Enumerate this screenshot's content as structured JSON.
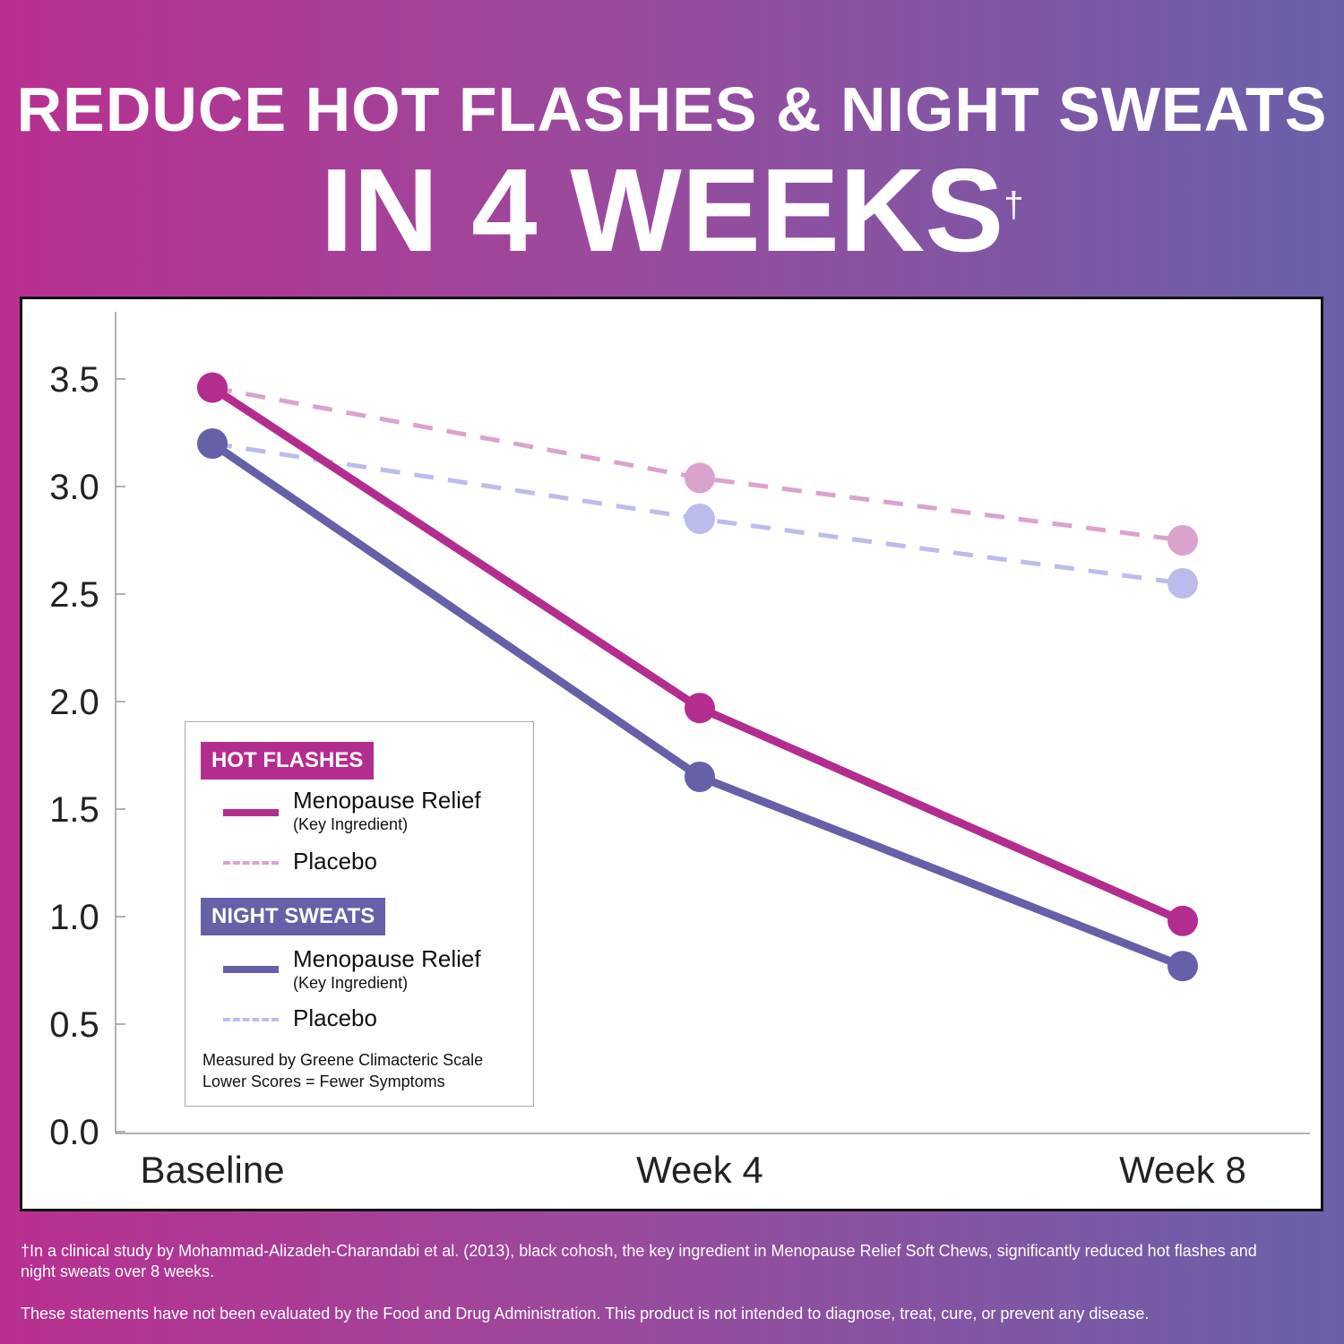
{
  "header": {
    "title_line1": "REDUCE HOT FLASHES & NIGHT SWEATS",
    "title_line2": "IN 4 WEEKS",
    "dagger": "†"
  },
  "chart_data": {
    "type": "line",
    "categories": [
      "Baseline",
      "Week 4",
      "Week 8"
    ],
    "ylim": [
      0,
      3.5
    ],
    "yticks": [
      "0.0",
      "0.5",
      "1.0",
      "1.5",
      "2.0",
      "2.5",
      "3.0",
      "3.5"
    ],
    "grid": false,
    "legend_position": "bottom-left",
    "series": [
      {
        "group": "HOT FLASHES",
        "name": "Menopause Relief",
        "subname": "(Key Ingredient)",
        "style": "solid",
        "color": "#b32d8e",
        "values": [
          3.46,
          1.97,
          0.98
        ]
      },
      {
        "group": "HOT FLASHES",
        "name": "Placebo",
        "style": "dashed",
        "color": "#d9a3cc",
        "values": [
          3.46,
          3.04,
          2.75
        ]
      },
      {
        "group": "NIGHT SWEATS",
        "name": "Menopause Relief",
        "subname": "(Key Ingredient)",
        "style": "solid",
        "color": "#6560a8",
        "values": [
          3.2,
          1.65,
          0.77
        ]
      },
      {
        "group": "NIGHT SWEATS",
        "name": "Placebo",
        "style": "dashed",
        "color": "#bcbcec",
        "values": [
          3.2,
          2.85,
          2.55
        ]
      }
    ]
  },
  "legend": {
    "hot_flashes": "HOT FLASHES",
    "night_sweats": "NIGHT SWEATS",
    "relief": "Menopause Relief",
    "key": "(Key Ingredient)",
    "placebo": "Placebo",
    "note1": "Measured by Greene Climacteric Scale",
    "note2": "Lower Scores = Fewer Symptoms",
    "hf_color": "#b32d8e",
    "ns_color": "#6560a8"
  },
  "footer": {
    "study": "†In a clinical study by Mohammad-Alizadeh-Charandabi et al. (2013), black cohosh, the key ingredient in Menopause Relief Soft Chews, significantly reduced hot flashes and night sweats over 8 weeks.",
    "fda": "These statements have not been evaluated by the Food and Drug Administration. This product is not intended to diagnose, treat, cure, or prevent any disease."
  }
}
